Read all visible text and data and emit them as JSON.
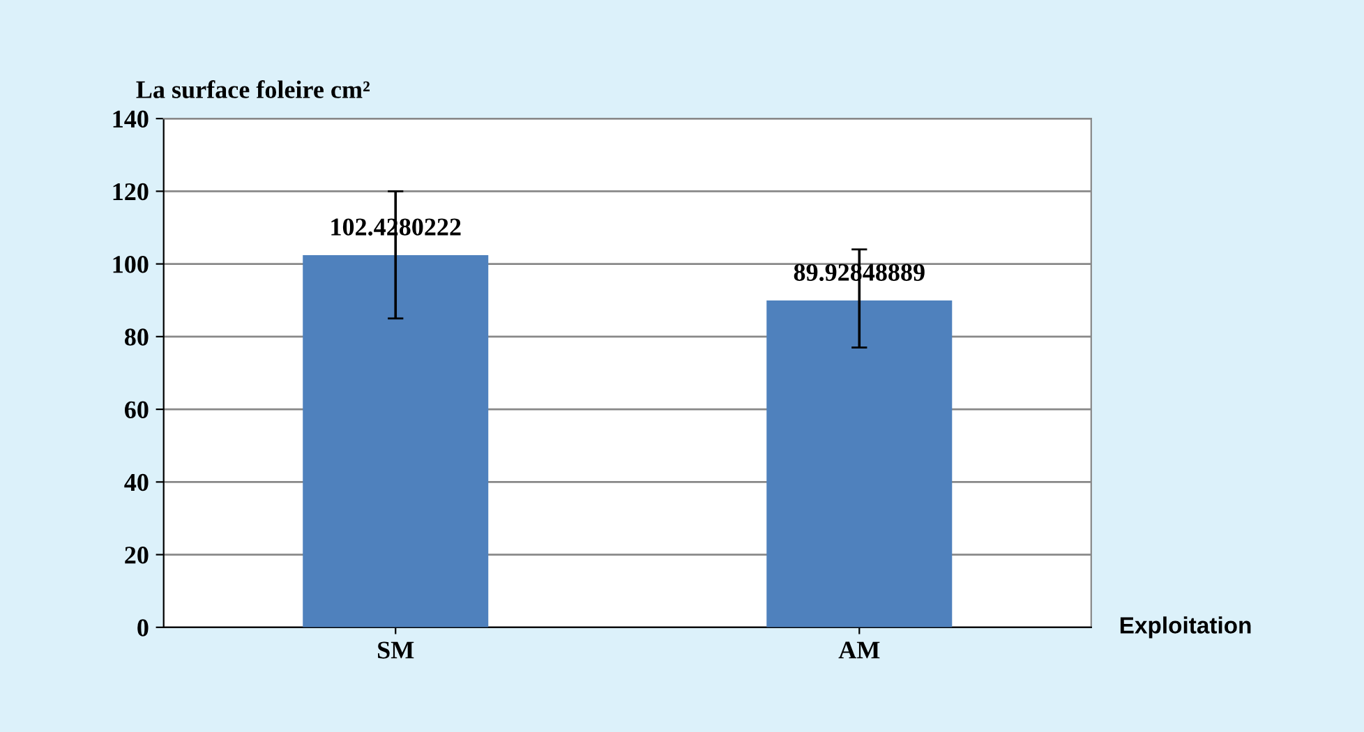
{
  "chart_data": {
    "type": "bar",
    "ylabel": "La surface foleire cm²",
    "xlabel": "Exploitation",
    "categories": [
      "SM",
      "AM"
    ],
    "values": [
      102.4280222,
      89.92848889
    ],
    "errors": [
      [
        85,
        120
      ],
      [
        77,
        104
      ]
    ],
    "color": "#4f81bd",
    "ylim": [
      0,
      140
    ],
    "yticks": [
      0,
      20,
      40,
      60,
      80,
      100,
      120,
      140
    ],
    "grid": "y",
    "data_labels": true
  }
}
